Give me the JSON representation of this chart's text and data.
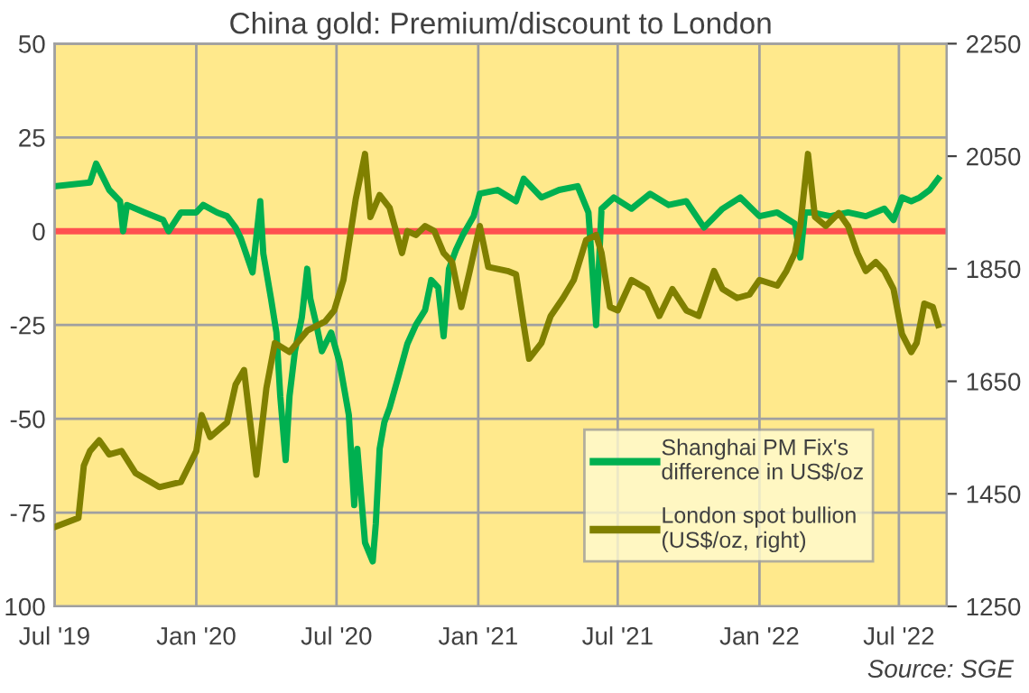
{
  "chart_data": {
    "type": "line",
    "title": "China gold: Premium/discount to London",
    "xlim": [
      "2019-07-01",
      "2022-09-01"
    ],
    "xticks": [
      {
        "value": "2019-07-01",
        "label": "Jul '19"
      },
      {
        "value": "2020-01-01",
        "label": "Jan '20"
      },
      {
        "value": "2020-07-01",
        "label": "Jul '20"
      },
      {
        "value": "2021-01-01",
        "label": "Jan '21"
      },
      {
        "value": "2021-07-01",
        "label": "Jul '21"
      },
      {
        "value": "2022-01-01",
        "label": "Jan '22"
      },
      {
        "value": "2022-07-01",
        "label": "Jul '22"
      }
    ],
    "ylim": [
      -100,
      50
    ],
    "yticks": [
      {
        "value": -100,
        "label": "100"
      },
      -75,
      -50,
      -25,
      0,
      25,
      50
    ],
    "y2lim": [
      1250,
      2250
    ],
    "y2ticks": [
      1250,
      1450,
      1650,
      1850,
      2050,
      2250
    ],
    "grid": true,
    "legend": "bottom right",
    "line_style": "solid",
    "marker": "none",
    "ref_lines": [
      {
        "axis": "y",
        "value": 0,
        "color": "#ff5050"
      }
    ],
    "annotations": [
      "Source: SGE"
    ],
    "series": [
      {
        "name": "Shanghai PM Fix's\ndifference in US$/oz",
        "color": "#00b050",
        "x": [
          "2019-07-01",
          "2019-08-16",
          "2019-08-24",
          "2019-09-10",
          "2019-09-24",
          "2019-09-28",
          "2019-10-03",
          "2019-10-26",
          "2019-11-19",
          "2019-11-26",
          "2019-12-12",
          "2020-01-01",
          "2020-01-10",
          "2020-01-28",
          "2020-02-10",
          "2020-02-21",
          "2020-02-28",
          "2020-03-14",
          "2020-03-24",
          "2020-03-28",
          "2020-04-07",
          "2020-04-14",
          "2020-04-19",
          "2020-04-26",
          "2020-05-01",
          "2020-05-08",
          "2020-05-17",
          "2020-05-24",
          "2020-05-28",
          "2020-06-05",
          "2020-06-12",
          "2020-06-24",
          "2020-07-05",
          "2020-07-17",
          "2020-07-24",
          "2020-07-28",
          "2020-08-07",
          "2020-08-17",
          "2020-08-21",
          "2020-08-26",
          "2020-09-01",
          "2020-09-08",
          "2020-09-19",
          "2020-10-01",
          "2020-10-12",
          "2020-10-24",
          "2020-11-01",
          "2020-11-10",
          "2020-11-17",
          "2020-11-24",
          "2020-12-03",
          "2020-12-12",
          "2020-12-26",
          "2021-01-03",
          "2021-01-26",
          "2021-02-19",
          "2021-03-01",
          "2021-03-24",
          "2021-04-16",
          "2021-05-10",
          "2021-05-24",
          "2021-06-03",
          "2021-06-10",
          "2021-06-26",
          "2021-07-19",
          "2021-08-12",
          "2021-09-05",
          "2021-09-28",
          "2021-10-21",
          "2021-11-14",
          "2021-12-07",
          "2022-01-01",
          "2022-01-24",
          "2022-02-16",
          "2022-02-23",
          "2022-03-01",
          "2022-03-10",
          "2022-04-03",
          "2022-04-26",
          "2022-05-19",
          "2022-06-12",
          "2022-06-24",
          "2022-07-05",
          "2022-07-17",
          "2022-07-28",
          "2022-08-10",
          "2022-08-21"
        ],
        "values": [
          12,
          13,
          18,
          11,
          8,
          0,
          7,
          5,
          3,
          0,
          5,
          5,
          7,
          5,
          4,
          1,
          -2,
          -11,
          8,
          -6,
          -18,
          -27,
          -44,
          -61,
          -44,
          -32,
          -23,
          -10,
          -18,
          -25,
          -32,
          -27,
          -35,
          -49,
          -73,
          -58,
          -83,
          -88,
          -78,
          -58,
          -51,
          -47,
          -39,
          -30,
          -25,
          -21,
          -13,
          -15,
          -28,
          -10,
          -5,
          -1,
          4,
          10,
          11,
          8,
          14,
          9,
          11,
          12,
          5,
          -25,
          6,
          9,
          6,
          10,
          7,
          8,
          1,
          6,
          9,
          4,
          5,
          2,
          -7,
          5,
          5,
          4,
          5,
          4,
          6,
          3,
          9,
          8,
          9,
          11,
          14
        ]
      },
      {
        "name": "London spot bullion\n(US$/oz, right)",
        "color": "#808000",
        "axis": "y2",
        "x": [
          "2019-07-01",
          "2019-08-01",
          "2019-08-08",
          "2019-08-16",
          "2019-08-28",
          "2019-09-10",
          "2019-09-26",
          "2019-10-14",
          "2019-11-14",
          "2019-12-12",
          "2020-01-01",
          "2020-01-08",
          "2020-01-19",
          "2020-02-10",
          "2020-02-21",
          "2020-03-03",
          "2020-03-19",
          "2020-04-01",
          "2020-04-12",
          "2020-05-01",
          "2020-05-24",
          "2020-06-16",
          "2020-06-28",
          "2020-07-10",
          "2020-07-26",
          "2020-08-07",
          "2020-08-14",
          "2020-08-26",
          "2020-09-08",
          "2020-09-24",
          "2020-10-01",
          "2020-10-12",
          "2020-10-24",
          "2020-11-05",
          "2020-11-17",
          "2020-11-28",
          "2020-12-10",
          "2020-12-21",
          "2021-01-03",
          "2021-01-14",
          "2021-02-08",
          "2021-02-19",
          "2021-03-01",
          "2021-03-08",
          "2021-03-24",
          "2021-04-05",
          "2021-04-21",
          "2021-05-05",
          "2021-05-21",
          "2021-06-03",
          "2021-06-10",
          "2021-06-21",
          "2021-07-01",
          "2021-07-19",
          "2021-08-08",
          "2021-08-24",
          "2021-09-10",
          "2021-09-28",
          "2021-10-14",
          "2021-11-03",
          "2021-11-14",
          "2021-12-03",
          "2021-12-19",
          "2022-01-01",
          "2022-01-24",
          "2022-02-05",
          "2022-02-16",
          "2022-02-23",
          "2022-03-05",
          "2022-03-14",
          "2022-03-28",
          "2022-04-14",
          "2022-04-26",
          "2022-05-08",
          "2022-05-19",
          "2022-06-01",
          "2022-06-12",
          "2022-06-24",
          "2022-07-05",
          "2022-07-17",
          "2022-07-24",
          "2022-08-03",
          "2022-08-14",
          "2022-08-21"
        ],
        "values": [
          1391,
          1407,
          1500,
          1526,
          1545,
          1520,
          1526,
          1487,
          1462,
          1471,
          1526,
          1590,
          1551,
          1577,
          1644,
          1670,
          1484,
          1638,
          1718,
          1702,
          1740,
          1756,
          1776,
          1830,
          1974,
          2054,
          1942,
          1981,
          1958,
          1878,
          1917,
          1910,
          1926,
          1917,
          1878,
          1862,
          1782,
          1846,
          1926,
          1853,
          1846,
          1840,
          1750,
          1690,
          1718,
          1766,
          1798,
          1830,
          1901,
          1910,
          1878,
          1782,
          1776,
          1830,
          1814,
          1766,
          1814,
          1776,
          1766,
          1846,
          1814,
          1798,
          1804,
          1830,
          1820,
          1846,
          1878,
          1926,
          2054,
          1942,
          1926,
          1949,
          1926,
          1878,
          1846,
          1862,
          1846,
          1814,
          1734,
          1702,
          1718,
          1788,
          1782,
          1750
        ]
      }
    ]
  }
}
